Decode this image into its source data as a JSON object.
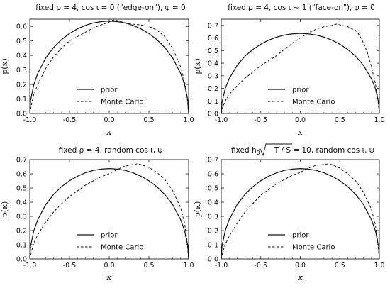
{
  "chart_data": [
    {
      "type": "line",
      "title": "fixed ρ = 4, cos ι = 0 (\"edge-on\"), ψ = 0",
      "xlabel": "κ",
      "ylabel": "p(κ)",
      "xlim": [
        -1,
        1
      ],
      "ylim": [
        0,
        0.65
      ],
      "xticks": [
        "-1.0",
        "-0.5",
        "0.0",
        "0.5",
        "1.0"
      ],
      "yticks": [
        "0.0",
        "0.1",
        "0.2",
        "0.3",
        "0.4",
        "0.5",
        "0.6"
      ],
      "legend": [
        "prior",
        "Monte Carlo"
      ],
      "legend_position": "bottom-center",
      "grid": false,
      "series": [
        {
          "name": "prior",
          "style": "solid",
          "x": [
            -1.0,
            -0.99,
            -0.95,
            -0.9,
            -0.8,
            -0.7,
            -0.6,
            -0.5,
            -0.4,
            -0.3,
            -0.2,
            -0.1,
            0.0,
            0.1,
            0.2,
            0.3,
            0.4,
            0.5,
            0.6,
            0.7,
            0.8,
            0.9,
            0.95,
            0.99,
            1.0
          ],
          "y": [
            0.0,
            0.09,
            0.198,
            0.276,
            0.382,
            0.455,
            0.509,
            0.551,
            0.583,
            0.607,
            0.624,
            0.633,
            0.637,
            0.633,
            0.624,
            0.607,
            0.583,
            0.551,
            0.509,
            0.455,
            0.382,
            0.276,
            0.198,
            0.09,
            0.0
          ]
        },
        {
          "name": "Monte Carlo",
          "style": "dashed",
          "x": [
            -1.0,
            -0.98,
            -0.95,
            -0.9,
            -0.8,
            -0.7,
            -0.6,
            -0.5,
            -0.4,
            -0.3,
            -0.2,
            -0.1,
            0.0,
            0.05,
            0.1,
            0.2,
            0.3,
            0.4,
            0.5,
            0.6,
            0.7,
            0.8,
            0.9,
            0.95,
            0.98,
            1.0
          ],
          "y": [
            0.0,
            0.06,
            0.13,
            0.2,
            0.31,
            0.39,
            0.45,
            0.5,
            0.53,
            0.56,
            0.59,
            0.61,
            0.63,
            0.645,
            0.64,
            0.625,
            0.615,
            0.61,
            0.6,
            0.575,
            0.53,
            0.45,
            0.32,
            0.22,
            0.12,
            0.0
          ]
        }
      ]
    },
    {
      "type": "line",
      "title": "fixed ρ = 4, cos ι ~ 1 (\"face-on\"), ψ = 0",
      "xlabel": "κ",
      "ylabel": "p(κ)",
      "xlim": [
        -1,
        1
      ],
      "ylim": [
        0,
        0.75
      ],
      "xticks": [
        "-1.0",
        "-0.5",
        "0.0",
        "0.5",
        "1.0"
      ],
      "yticks": [
        "0.0",
        "0.1",
        "0.2",
        "0.3",
        "0.4",
        "0.5",
        "0.6",
        "0.7"
      ],
      "legend": [
        "prior",
        "Monte Carlo"
      ],
      "legend_position": "bottom-center",
      "grid": false,
      "series": [
        {
          "name": "prior",
          "style": "solid",
          "x": [
            -1.0,
            -0.99,
            -0.95,
            -0.9,
            -0.8,
            -0.7,
            -0.6,
            -0.5,
            -0.4,
            -0.3,
            -0.2,
            -0.1,
            0.0,
            0.1,
            0.2,
            0.3,
            0.4,
            0.5,
            0.6,
            0.7,
            0.8,
            0.9,
            0.95,
            0.99,
            1.0
          ],
          "y": [
            0.0,
            0.09,
            0.198,
            0.276,
            0.382,
            0.455,
            0.509,
            0.551,
            0.583,
            0.607,
            0.624,
            0.633,
            0.637,
            0.633,
            0.624,
            0.607,
            0.583,
            0.551,
            0.509,
            0.455,
            0.382,
            0.276,
            0.198,
            0.09,
            0.0
          ]
        },
        {
          "name": "Monte Carlo",
          "style": "dashed",
          "x": [
            -1.0,
            -0.98,
            -0.95,
            -0.9,
            -0.8,
            -0.7,
            -0.6,
            -0.5,
            -0.4,
            -0.3,
            -0.2,
            -0.1,
            0.0,
            0.1,
            0.2,
            0.3,
            0.4,
            0.45,
            0.5,
            0.6,
            0.7,
            0.75,
            0.8,
            0.85,
            0.9,
            0.95,
            0.98,
            1.0
          ],
          "y": [
            0.0,
            0.05,
            0.1,
            0.15,
            0.22,
            0.28,
            0.33,
            0.38,
            0.42,
            0.46,
            0.51,
            0.56,
            0.6,
            0.64,
            0.67,
            0.69,
            0.7,
            0.71,
            0.705,
            0.69,
            0.66,
            0.62,
            0.56,
            0.48,
            0.37,
            0.24,
            0.12,
            0.0
          ]
        }
      ]
    },
    {
      "type": "line",
      "title": "fixed ρ = 4, random cos ι, ψ",
      "xlabel": "κ",
      "ylabel": "p(κ)",
      "xlim": [
        -1,
        1
      ],
      "ylim": [
        0,
        0.7
      ],
      "xticks": [
        "-1.0",
        "-0.5",
        "0.0",
        "0.5",
        "1.0"
      ],
      "yticks": [
        "0.0",
        "0.1",
        "0.2",
        "0.3",
        "0.4",
        "0.5",
        "0.6",
        "0.7"
      ],
      "legend": [
        "prior",
        "Monte Carlo"
      ],
      "legend_position": "bottom-center",
      "grid": false,
      "series": [
        {
          "name": "prior",
          "style": "solid",
          "x": [
            -1.0,
            -0.99,
            -0.95,
            -0.9,
            -0.8,
            -0.7,
            -0.6,
            -0.5,
            -0.4,
            -0.3,
            -0.2,
            -0.1,
            0.0,
            0.1,
            0.2,
            0.3,
            0.4,
            0.5,
            0.6,
            0.7,
            0.8,
            0.9,
            0.95,
            0.99,
            1.0
          ],
          "y": [
            0.0,
            0.09,
            0.198,
            0.276,
            0.382,
            0.455,
            0.509,
            0.551,
            0.583,
            0.607,
            0.624,
            0.633,
            0.637,
            0.633,
            0.624,
            0.607,
            0.583,
            0.551,
            0.509,
            0.455,
            0.382,
            0.276,
            0.198,
            0.09,
            0.0
          ]
        },
        {
          "name": "Monte Carlo",
          "style": "dashed",
          "x": [
            -1.0,
            -0.98,
            -0.95,
            -0.9,
            -0.8,
            -0.7,
            -0.6,
            -0.5,
            -0.4,
            -0.3,
            -0.2,
            -0.1,
            0.0,
            0.1,
            0.2,
            0.3,
            0.35,
            0.4,
            0.5,
            0.6,
            0.7,
            0.8,
            0.9,
            0.95,
            0.98,
            1.0
          ],
          "y": [
            0.0,
            0.05,
            0.11,
            0.17,
            0.26,
            0.33,
            0.39,
            0.44,
            0.48,
            0.52,
            0.55,
            0.58,
            0.6,
            0.63,
            0.655,
            0.665,
            0.67,
            0.665,
            0.645,
            0.61,
            0.56,
            0.48,
            0.36,
            0.25,
            0.13,
            0.0
          ]
        }
      ]
    },
    {
      "type": "line",
      "title_parts": {
        "prefix": "fixed h",
        "sub": "0",
        "radicand": "T / S",
        "suffix": " = 10, random cos ι, ψ"
      },
      "xlabel": "κ",
      "ylabel": "p(κ)",
      "xlim": [
        -1,
        1
      ],
      "ylim": [
        0,
        0.7
      ],
      "xticks": [
        "-1.0",
        "-0.5",
        "0.0",
        "0.5",
        "1.0"
      ],
      "yticks": [
        "0.0",
        "0.1",
        "0.2",
        "0.3",
        "0.4",
        "0.5",
        "0.6",
        "0.7"
      ],
      "legend": [
        "prior",
        "Monte Carlo"
      ],
      "legend_position": "bottom-center",
      "grid": false,
      "series": [
        {
          "name": "prior",
          "style": "solid",
          "x": [
            -1.0,
            -0.99,
            -0.95,
            -0.9,
            -0.8,
            -0.7,
            -0.6,
            -0.5,
            -0.4,
            -0.3,
            -0.2,
            -0.1,
            0.0,
            0.1,
            0.2,
            0.3,
            0.4,
            0.5,
            0.6,
            0.7,
            0.8,
            0.9,
            0.95,
            0.99,
            1.0
          ],
          "y": [
            0.0,
            0.09,
            0.198,
            0.276,
            0.382,
            0.455,
            0.509,
            0.551,
            0.583,
            0.607,
            0.624,
            0.633,
            0.637,
            0.633,
            0.624,
            0.607,
            0.583,
            0.551,
            0.509,
            0.455,
            0.382,
            0.276,
            0.198,
            0.09,
            0.0
          ]
        },
        {
          "name": "Monte Carlo",
          "style": "dashed",
          "x": [
            -1.0,
            -0.98,
            -0.95,
            -0.9,
            -0.8,
            -0.7,
            -0.6,
            -0.5,
            -0.4,
            -0.3,
            -0.2,
            -0.1,
            0.0,
            0.1,
            0.2,
            0.3,
            0.35,
            0.4,
            0.5,
            0.6,
            0.7,
            0.8,
            0.9,
            0.95,
            0.98,
            1.0
          ],
          "y": [
            0.0,
            0.05,
            0.1,
            0.16,
            0.25,
            0.33,
            0.39,
            0.45,
            0.49,
            0.53,
            0.56,
            0.59,
            0.61,
            0.64,
            0.66,
            0.665,
            0.67,
            0.665,
            0.64,
            0.6,
            0.55,
            0.47,
            0.35,
            0.24,
            0.12,
            0.0
          ]
        }
      ]
    }
  ]
}
